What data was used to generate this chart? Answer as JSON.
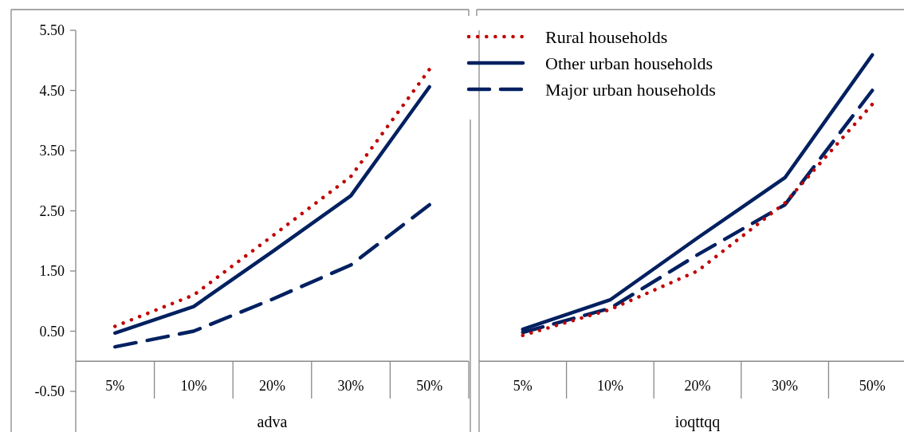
{
  "chart_data": [
    {
      "type": "line",
      "categories": [
        "5%",
        "10%",
        "20%",
        "30%",
        "50%"
      ],
      "xlabel": "adva",
      "ylim": [
        -0.5,
        5.5
      ],
      "yticks": [
        {
          "value": 5.5,
          "label": "5.50"
        },
        {
          "value": 4.5,
          "label": "4.50"
        },
        {
          "value": 3.5,
          "label": "3.50"
        },
        {
          "value": 2.5,
          "label": "2.50"
        },
        {
          "value": 1.5,
          "label": "1.50"
        },
        {
          "value": 0.5,
          "label": "0.50"
        },
        {
          "value": -0.5,
          "label": "-0.50"
        }
      ],
      "grid": false,
      "legend": false,
      "series": [
        {
          "color": "#c00000",
          "line_style": "dotted",
          "values": [
            0.58,
            1.1,
            2.08,
            3.07,
            4.85
          ]
        },
        {
          "color": "#002060",
          "line_style": "solid",
          "values": [
            0.47,
            0.91,
            1.82,
            2.75,
            4.56
          ]
        },
        {
          "color": "#002060",
          "line_style": "dashed",
          "values": [
            0.24,
            0.5,
            1.03,
            1.6,
            2.6
          ]
        }
      ]
    },
    {
      "type": "line",
      "categories": [
        "5%",
        "10%",
        "20%",
        "30%",
        "50%"
      ],
      "xlabel": "ioqttqq",
      "ylim": [
        -0.5,
        5.5
      ],
      "tick_labels": "x",
      "grid": false,
      "legend": "top",
      "series": [
        {
          "name": "Rural households",
          "color": "#c00000",
          "line_style": "dotted",
          "values": [
            0.43,
            0.86,
            1.5,
            2.63,
            4.27
          ]
        },
        {
          "name": "Other urban households",
          "color": "#002060",
          "line_style": "solid",
          "values": [
            0.53,
            1.02,
            2.05,
            3.05,
            5.09
          ]
        },
        {
          "name": "Major urban households",
          "color": "#002060",
          "line_style": "dashed",
          "values": [
            0.48,
            0.88,
            1.77,
            2.6,
            4.5
          ]
        }
      ]
    }
  ]
}
